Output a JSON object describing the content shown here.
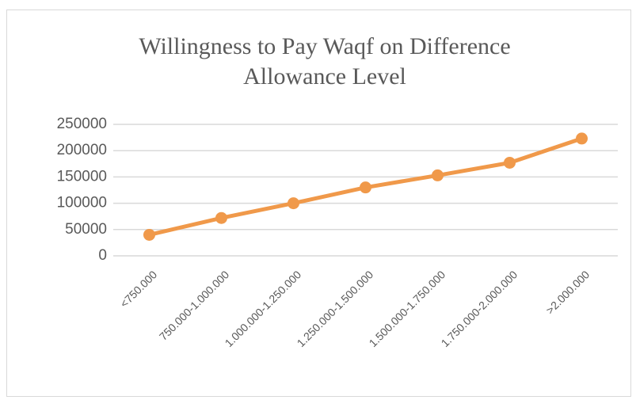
{
  "chart_data": {
    "type": "line",
    "title": "Willingness to Pay Waqf on Difference Allowance Level",
    "categories": [
      "<750.000",
      "750.000-1.000.000",
      "1.000.000-1.250.000",
      "1.250.000-1.500.000",
      "1.500.000-1.750.000",
      "1.750.000-2.000.000",
      ">2.000.000"
    ],
    "values": [
      40000,
      72000,
      100000,
      130000,
      153000,
      177000,
      223000
    ],
    "color": "#f0994a",
    "ylim": [
      0,
      250000
    ],
    "yticks": [
      0,
      50000,
      100000,
      150000,
      200000,
      250000
    ],
    "grid": true
  }
}
